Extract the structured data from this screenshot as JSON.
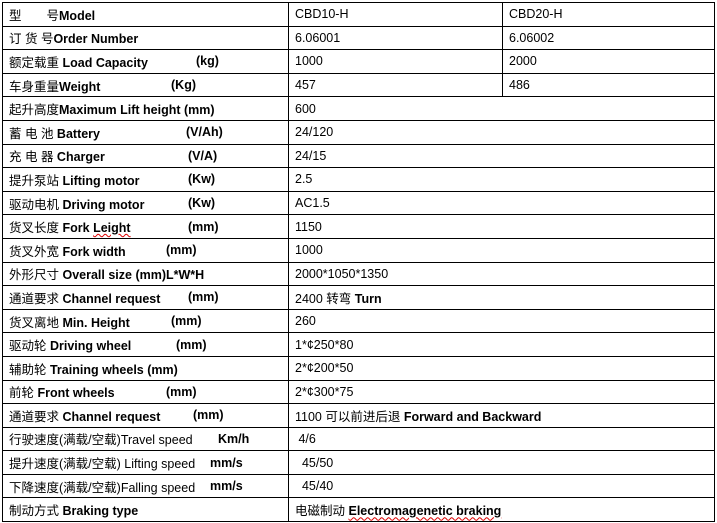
{
  "rows": [
    {
      "cn": "型　　号",
      "en": "Model",
      "unit": "",
      "v1": "CBD10-H",
      "v2": "CBD20-H"
    },
    {
      "cn": "订 货 号",
      "en": "Order Number",
      "unit": "",
      "v1": "6.06001",
      "v2": "6.06002"
    },
    {
      "cn": "额定载重 ",
      "en": "Load Capacity",
      "unit": "(kg)",
      "v1": "1000",
      "v2": "2000"
    },
    {
      "cn": "车身重量",
      "en": "Weight",
      "unit": "(Kg)",
      "v1": "457",
      "v2": "486"
    },
    {
      "cn": "起升高度",
      "en": "Maximum Lift height (mm)",
      "unit": "",
      "v1": "600"
    },
    {
      "cn": "蓄 电 池",
      "en": " Battery",
      "unit": "(V/Ah)",
      "v1": "24/120"
    },
    {
      "cn": "充 电 器",
      "en": " Charger",
      "unit": "(V/A)",
      "v1": "24/15"
    },
    {
      "cn": "提升泵站",
      "en": " Lifting motor",
      "unit": "(Kw)",
      "v1": "2.5"
    },
    {
      "cn": "驱动电机",
      "en": " Driving motor",
      "unit": "(Kw)",
      "v1": "AC1.5"
    },
    {
      "cn": "货叉长度",
      "en": " Fork Leight",
      "unit": "(mm)",
      "v1": "1150"
    },
    {
      "cn": "货叉外宽",
      "en": " Fork width",
      "unit": "(mm)",
      "v1": "1000"
    },
    {
      "cn": "外形尺寸",
      "en": " Overall size (mm)L*W*H",
      "unit": "",
      "v1": "2000*1050*1350"
    },
    {
      "cn": "通道要求 ",
      "en": "Channel request",
      "unit": "(mm)",
      "v1": "2400 转弯 ",
      "v1b": "Turn"
    },
    {
      "cn": "货叉离地",
      "en": " Min. Height",
      "unit": "(mm)",
      "v1": "260"
    },
    {
      "cn": "驱动轮 ",
      "en": " Driving wheel",
      "unit": "(mm)",
      "v1": "1*¢250*80"
    },
    {
      "cn": "辅助轮",
      "en": " Training wheels (mm)",
      "unit": "",
      "v1": "2*¢200*50"
    },
    {
      "cn": "前轮",
      "en": " Front wheels",
      "unit": "(mm)",
      "v1": "2*¢300*75"
    },
    {
      "cn": "通道要求 ",
      "en": "Channel request",
      "unit": "(mm)",
      "v1": "1100 可以前进后退 ",
      "v1b": "Forward and Backward"
    },
    {
      "cn": "行驶速度(满载/空载)",
      "en": "Travel speed",
      "unit": "Km/h",
      "v1": " 4/6"
    },
    {
      "cn": "提升速度(满载/空载)",
      "en": " Lifting speed",
      "unit": "mm/s",
      "v1": "  45/50"
    },
    {
      "cn": "下降速度(满载/空载)",
      "en": "Falling speed",
      "unit": "mm/s",
      "v1": "  45/40"
    },
    {
      "cn": "制动方式",
      "en": " Braking type",
      "unit": "",
      "v1": "电磁制动 ",
      "v1b": "Electromagenetic braking"
    }
  ]
}
